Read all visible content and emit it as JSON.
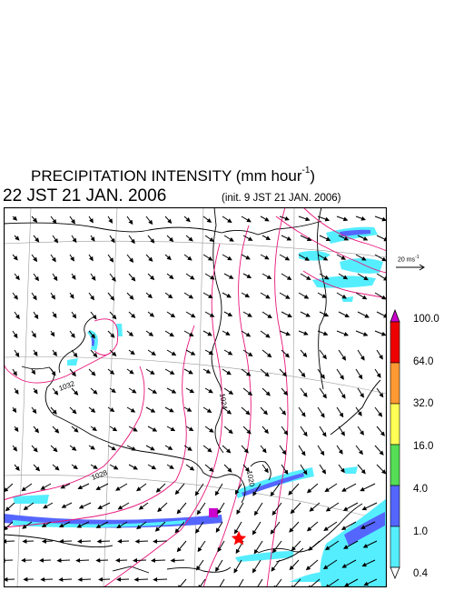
{
  "figure": {
    "title_main": "PRECIPITATION INTENSITY (mm hour",
    "title_exp": "-1",
    "title_close": ")",
    "valid_time": "22 JST 21 JAN. 2006",
    "init_time": "(init. 9 JST 21 JAN. 2006)"
  },
  "scale_vector": {
    "label_main": "20 ms",
    "label_exp": "-1"
  },
  "isobars": {
    "labels": [
      "1032",
      "1028",
      "1024",
      "1020"
    ]
  },
  "colorbar": {
    "labels": [
      "100.0",
      "64.0",
      "32.0",
      "16.0",
      "4.0",
      "1.0",
      "0.4"
    ],
    "colors": [
      "#cc00cc",
      "#ee0000",
      "#ff9933",
      "#ffff55",
      "#55dd55",
      "#5566ff",
      "#55eeff"
    ],
    "low_end_color": "#ffffff",
    "high_end_color": "#cc00cc"
  },
  "colors": {
    "isobar": "#e8157a",
    "border": "#000000",
    "star": "#ff0000"
  },
  "markers": {
    "star": "location-star"
  }
}
